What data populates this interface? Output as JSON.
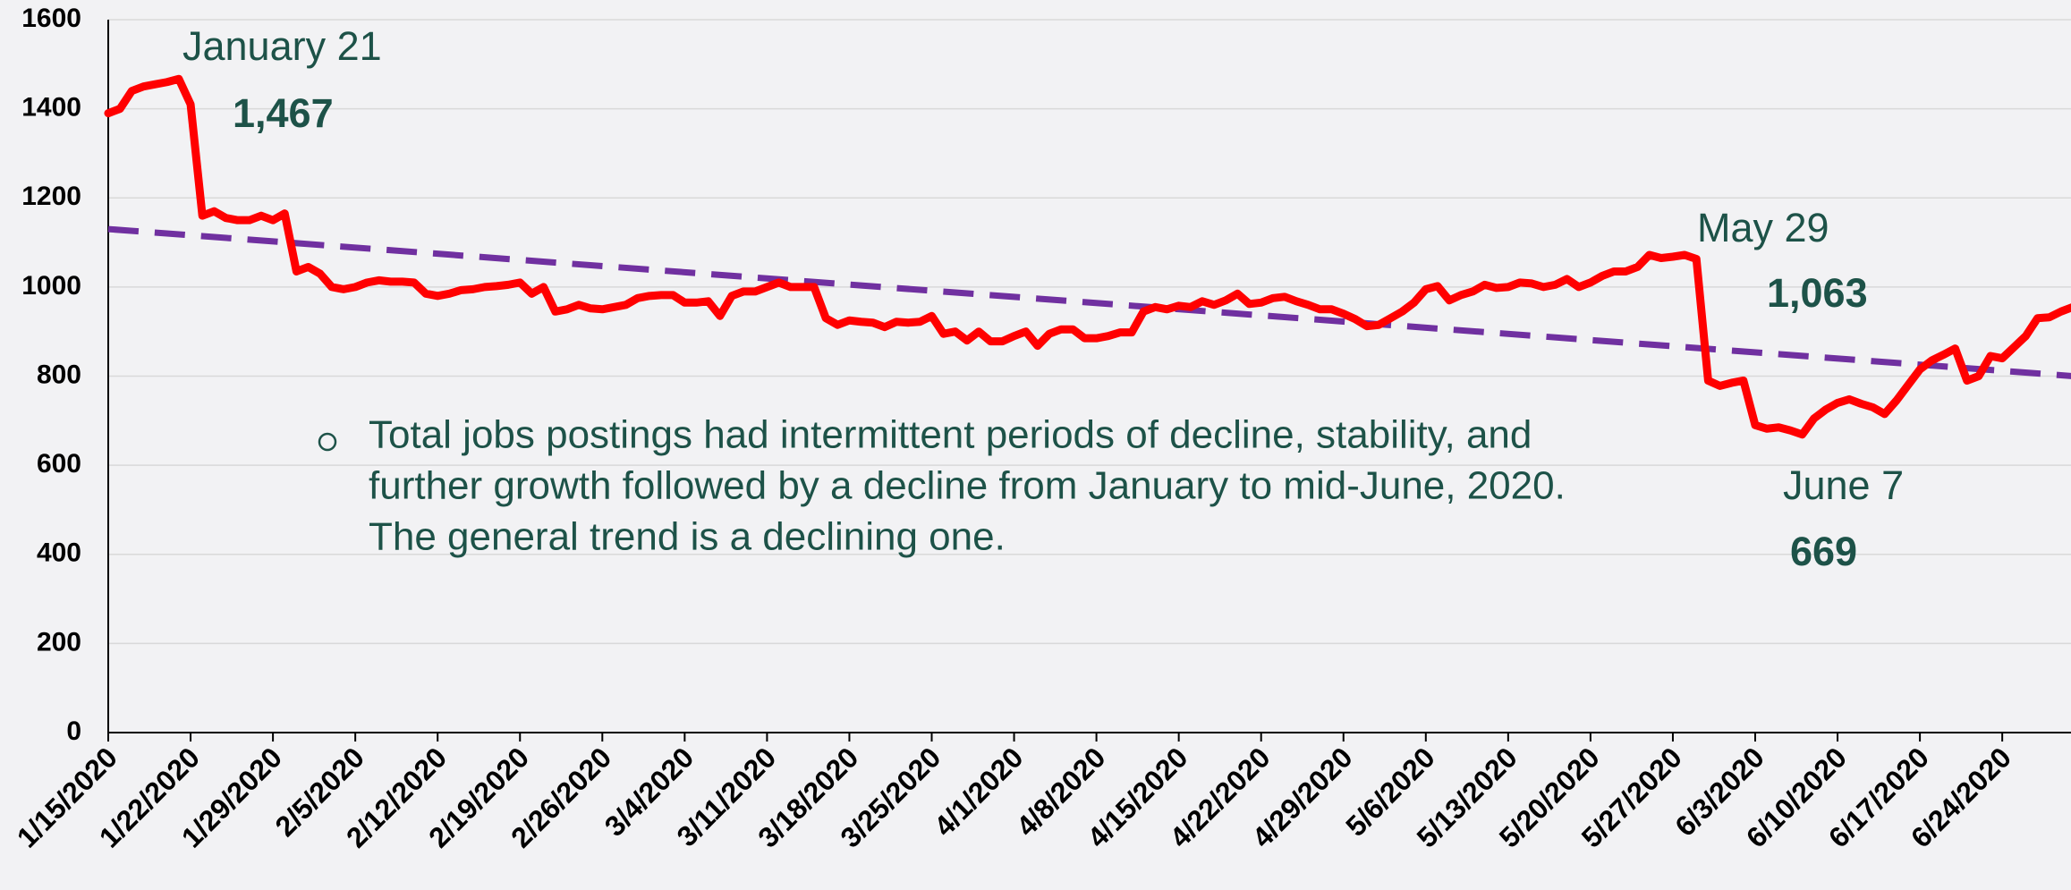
{
  "chart_data": {
    "type": "line",
    "categories": [
      "1/15/2020",
      null,
      null,
      null,
      null,
      null,
      null,
      "1/22/2020",
      null,
      null,
      null,
      null,
      null,
      null,
      "1/29/2020",
      null,
      null,
      null,
      null,
      null,
      null,
      "2/5/2020",
      null,
      null,
      null,
      null,
      null,
      null,
      "2/12/2020",
      null,
      null,
      null,
      null,
      null,
      null,
      "2/19/2020",
      null,
      null,
      null,
      null,
      null,
      null,
      "2/26/2020",
      null,
      null,
      null,
      null,
      null,
      null,
      "3/4/2020",
      null,
      null,
      null,
      null,
      null,
      null,
      "3/11/2020",
      null,
      null,
      null,
      null,
      null,
      null,
      "3/18/2020",
      null,
      null,
      null,
      null,
      null,
      null,
      "3/25/2020",
      null,
      null,
      null,
      null,
      null,
      null,
      "4/1/2020",
      null,
      null,
      null,
      null,
      null,
      null,
      "4/8/2020",
      null,
      null,
      null,
      null,
      null,
      null,
      "4/15/2020",
      null,
      null,
      null,
      null,
      null,
      null,
      "4/22/2020",
      null,
      null,
      null,
      null,
      null,
      null,
      "4/29/2020",
      null,
      null,
      null,
      null,
      null,
      null,
      "5/6/2020",
      null,
      null,
      null,
      null,
      null,
      null,
      "5/13/2020",
      null,
      null,
      null,
      null,
      null,
      null,
      "5/20/2020",
      null,
      null,
      null,
      null,
      null,
      null,
      "5/27/2020",
      null,
      null,
      null,
      null,
      null,
      null,
      "6/3/2020",
      null,
      null,
      null,
      null,
      null,
      null,
      "6/10/2020",
      null,
      null,
      null,
      null,
      null,
      null,
      "6/17/2020",
      null,
      null,
      null,
      null,
      null,
      null,
      "6/24/2020",
      null,
      null,
      null,
      null,
      null,
      null
    ],
    "series": [
      {
        "color": "#ff0000",
        "values": [
          1390,
          1400,
          1440,
          1450,
          1455,
          1460,
          1467,
          1410,
          1160,
          1170,
          1155,
          1150,
          1150,
          1160,
          1150,
          1165,
          1035,
          1045,
          1030,
          1000,
          995,
          1000,
          1010,
          1015,
          1012,
          1012,
          1010,
          985,
          980,
          985,
          993,
          995,
          1000,
          1002,
          1005,
          1010,
          985,
          1000,
          945,
          950,
          960,
          952,
          950,
          955,
          960,
          975,
          980,
          982,
          982,
          965,
          965,
          968,
          935,
          980,
          990,
          990,
          1000,
          1010,
          1000,
          1000,
          1000,
          930,
          915,
          925,
          922,
          920,
          910,
          922,
          920,
          922,
          935,
          895,
          900,
          880,
          900,
          878,
          878,
          890,
          900,
          868,
          895,
          905,
          905,
          885,
          885,
          890,
          898,
          898,
          945,
          955,
          950,
          958,
          955,
          968,
          960,
          970,
          985,
          962,
          965,
          975,
          978,
          968,
          960,
          950,
          950,
          940,
          928,
          912,
          915,
          930,
          945,
          965,
          995,
          1002,
          970,
          982,
          990,
          1005,
          998,
          1000,
          1010,
          1008,
          1000,
          1005,
          1018,
          1000,
          1010,
          1025,
          1035,
          1035,
          1045,
          1072,
          1065,
          1068,
          1072,
          1063,
          790,
          778,
          785,
          790,
          690,
          682,
          685,
          678,
          669,
          705,
          725,
          740,
          748,
          738,
          730,
          715,
          745,
          780,
          815,
          835,
          848,
          862,
          790,
          800,
          845,
          840,
          865,
          890,
          930,
          932,
          945,
          955
        ]
      }
    ],
    "trend": {
      "color": "#7030a0",
      "style": "dashed",
      "values": [
        1130,
        800
      ]
    },
    "annotations": [
      {
        "label": "January 21",
        "value_label": "1,467",
        "value": 1467
      },
      {
        "label": "May 29",
        "value_label": "1,063",
        "value": 1063
      },
      {
        "label": "June 7",
        "value_label": "669",
        "value": 669
      }
    ],
    "note": [
      "Total jobs postings had intermittent periods of decline, stability, and",
      "further growth followed by a decline from January to mid-June, 2020.",
      "The general trend is a declining one."
    ],
    "ylim": [
      0,
      1600
    ],
    "yticks": [
      0,
      200,
      400,
      600,
      800,
      1000,
      1200,
      1400,
      1600
    ],
    "grid": true
  }
}
